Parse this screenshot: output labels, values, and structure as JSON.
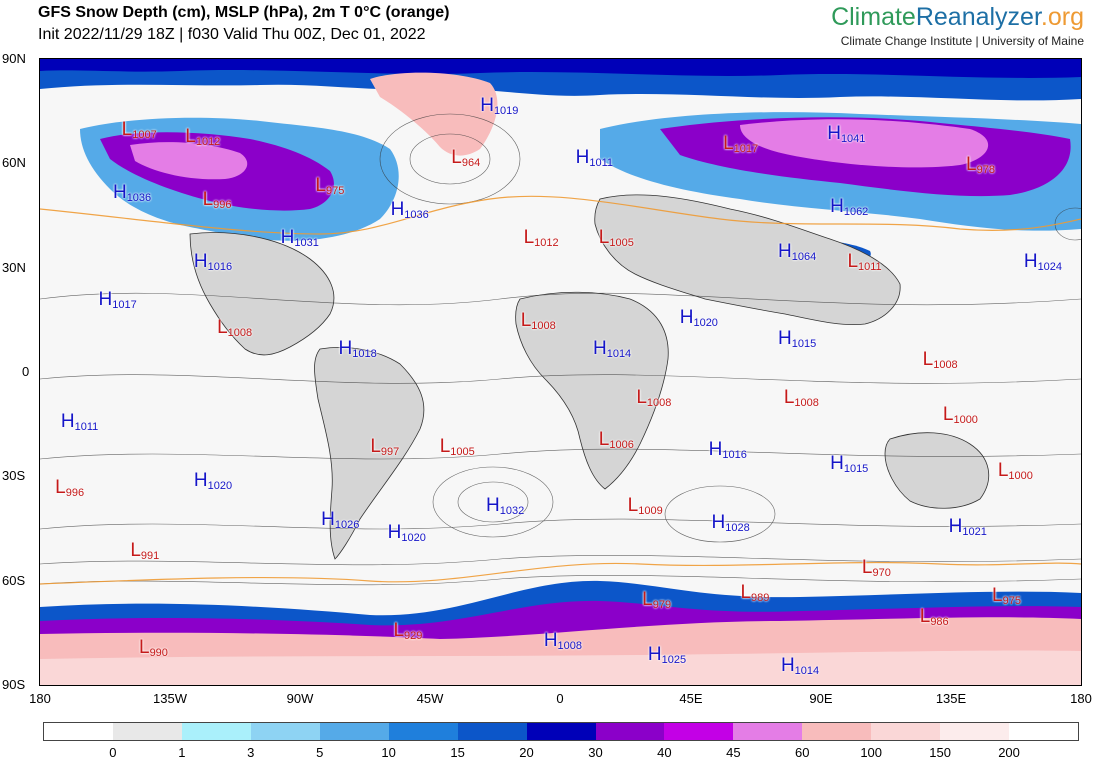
{
  "header": {
    "title": "GFS Snow Depth (cm), MSLP (hPa), 2m T 0°C (orange)",
    "subtitle": "Init 2022/11/29 18Z | f030 Valid Thu 00Z, Dec 01, 2022"
  },
  "brand": {
    "logo_climate": "Climate",
    "logo_reanalyzer": "Reanalyzer",
    "logo_org": ".org",
    "subtitle": "Climate Change Institute | University of Maine"
  },
  "axes": {
    "lat_ticks": [
      "90N",
      "60N",
      "30N",
      "0",
      "30S",
      "60S",
      "90S"
    ],
    "lon_ticks": [
      "180",
      "135W",
      "90W",
      "45W",
      "0",
      "45E",
      "90E",
      "135E",
      "180"
    ]
  },
  "colorbar": {
    "colors": [
      "#ffffff",
      "#e8e8e8",
      "#aaf0fb",
      "#8ed3f3",
      "#55aae8",
      "#1f7fdc",
      "#0c56c9",
      "#0000b8",
      "#8b00c9",
      "#c300e6",
      "#e47de6",
      "#f8bcbc",
      "#fad7d7",
      "#fcecec",
      "#ffffff"
    ],
    "labels": [
      "0",
      "1",
      "3",
      "5",
      "10",
      "15",
      "20",
      "30",
      "40",
      "45",
      "60",
      "100",
      "150",
      "200"
    ]
  },
  "pressure_centers": [
    {
      "type": "L",
      "value": "1007",
      "lon": -149,
      "lat": 69
    },
    {
      "type": "L",
      "value": "1012",
      "lon": -127,
      "lat": 67
    },
    {
      "type": "L",
      "value": "996",
      "lon": -121,
      "lat": 49
    },
    {
      "type": "H",
      "value": "1036",
      "lon": -152,
      "lat": 51
    },
    {
      "type": "L",
      "value": "975",
      "lon": -82,
      "lat": 53
    },
    {
      "type": "H",
      "value": "1031",
      "lon": -94,
      "lat": 38
    },
    {
      "type": "H",
      "value": "1036",
      "lon": -56,
      "lat": 46
    },
    {
      "type": "H",
      "value": "1016",
      "lon": -124,
      "lat": 31
    },
    {
      "type": "H",
      "value": "1017",
      "lon": -157,
      "lat": 20
    },
    {
      "type": "L",
      "value": "1008",
      "lon": -116,
      "lat": 12
    },
    {
      "type": "H",
      "value": "1018",
      "lon": -74,
      "lat": 6
    },
    {
      "type": "H",
      "value": "1011",
      "lon": -170,
      "lat": -15
    },
    {
      "type": "L",
      "value": "996",
      "lon": -172,
      "lat": -34
    },
    {
      "type": "H",
      "value": "1020",
      "lon": -124,
      "lat": -32
    },
    {
      "type": "H",
      "value": "1026",
      "lon": -80,
      "lat": -43
    },
    {
      "type": "H",
      "value": "1020",
      "lon": -57,
      "lat": -47
    },
    {
      "type": "L",
      "value": "997",
      "lon": -63,
      "lat": -22
    },
    {
      "type": "L",
      "value": "1005",
      "lon": -39,
      "lat": -22
    },
    {
      "type": "H",
      "value": "1032",
      "lon": -23,
      "lat": -39
    },
    {
      "type": "L",
      "value": "991",
      "lon": -146,
      "lat": -52
    },
    {
      "type": "L",
      "value": "990",
      "lon": -143,
      "lat": -80
    },
    {
      "type": "L",
      "value": "929",
      "lon": -55,
      "lat": -75
    },
    {
      "type": "H",
      "value": "1008",
      "lon": -3,
      "lat": -78
    },
    {
      "type": "L",
      "value": "964",
      "lon": -35,
      "lat": 61
    },
    {
      "type": "H",
      "value": "1019",
      "lon": -25,
      "lat": 76
    },
    {
      "type": "L",
      "value": "1012",
      "lon": -10,
      "lat": 38
    },
    {
      "type": "L",
      "value": "1005",
      "lon": 16,
      "lat": 38
    },
    {
      "type": "H",
      "value": "1011",
      "lon": 8,
      "lat": 61
    },
    {
      "type": "L",
      "value": "1008",
      "lon": -11,
      "lat": 14
    },
    {
      "type": "H",
      "value": "1014",
      "lon": 14,
      "lat": 6
    },
    {
      "type": "H",
      "value": "1020",
      "lon": 44,
      "lat": 15
    },
    {
      "type": "L",
      "value": "1008",
      "lon": 29,
      "lat": -8
    },
    {
      "type": "L",
      "value": "1006",
      "lon": 16,
      "lat": -20
    },
    {
      "type": "L",
      "value": "1009",
      "lon": 26,
      "lat": -39
    },
    {
      "type": "H",
      "value": "1016",
      "lon": 54,
      "lat": -23
    },
    {
      "type": "H",
      "value": "1028",
      "lon": 55,
      "lat": -44
    },
    {
      "type": "L",
      "value": "979",
      "lon": 31,
      "lat": -66
    },
    {
      "type": "L",
      "value": "989",
      "lon": 65,
      "lat": -64
    },
    {
      "type": "H",
      "value": "1025",
      "lon": 33,
      "lat": -82
    },
    {
      "type": "L",
      "value": "1017",
      "lon": 59,
      "lat": 65
    },
    {
      "type": "H",
      "value": "1041",
      "lon": 95,
      "lat": 68
    },
    {
      "type": "H",
      "value": "1062",
      "lon": 96,
      "lat": 47
    },
    {
      "type": "L",
      "value": "978",
      "lon": 143,
      "lat": 59
    },
    {
      "type": "H",
      "value": "1064",
      "lon": 78,
      "lat": 34
    },
    {
      "type": "L",
      "value": "1011",
      "lon": 102,
      "lat": 31
    },
    {
      "type": "H",
      "value": "1024",
      "lon": 163,
      "lat": 31
    },
    {
      "type": "H",
      "value": "1015",
      "lon": 78,
      "lat": 9
    },
    {
      "type": "L",
      "value": "1008",
      "lon": 128,
      "lat": 3
    },
    {
      "type": "L",
      "value": "1008",
      "lon": 80,
      "lat": -8
    },
    {
      "type": "L",
      "value": "1000",
      "lon": 135,
      "lat": -13
    },
    {
      "type": "H",
      "value": "1015",
      "lon": 96,
      "lat": -27
    },
    {
      "type": "L",
      "value": "1000",
      "lon": 154,
      "lat": -29
    },
    {
      "type": "H",
      "value": "1021",
      "lon": 137,
      "lat": -45
    },
    {
      "type": "L",
      "value": "970",
      "lon": 107,
      "lat": -57
    },
    {
      "type": "L",
      "value": "986",
      "lon": 127,
      "lat": -71
    },
    {
      "type": "L",
      "value": "975",
      "lon": 152,
      "lat": -65
    },
    {
      "type": "H",
      "value": "1014",
      "lon": 79,
      "lat": -85
    }
  ]
}
